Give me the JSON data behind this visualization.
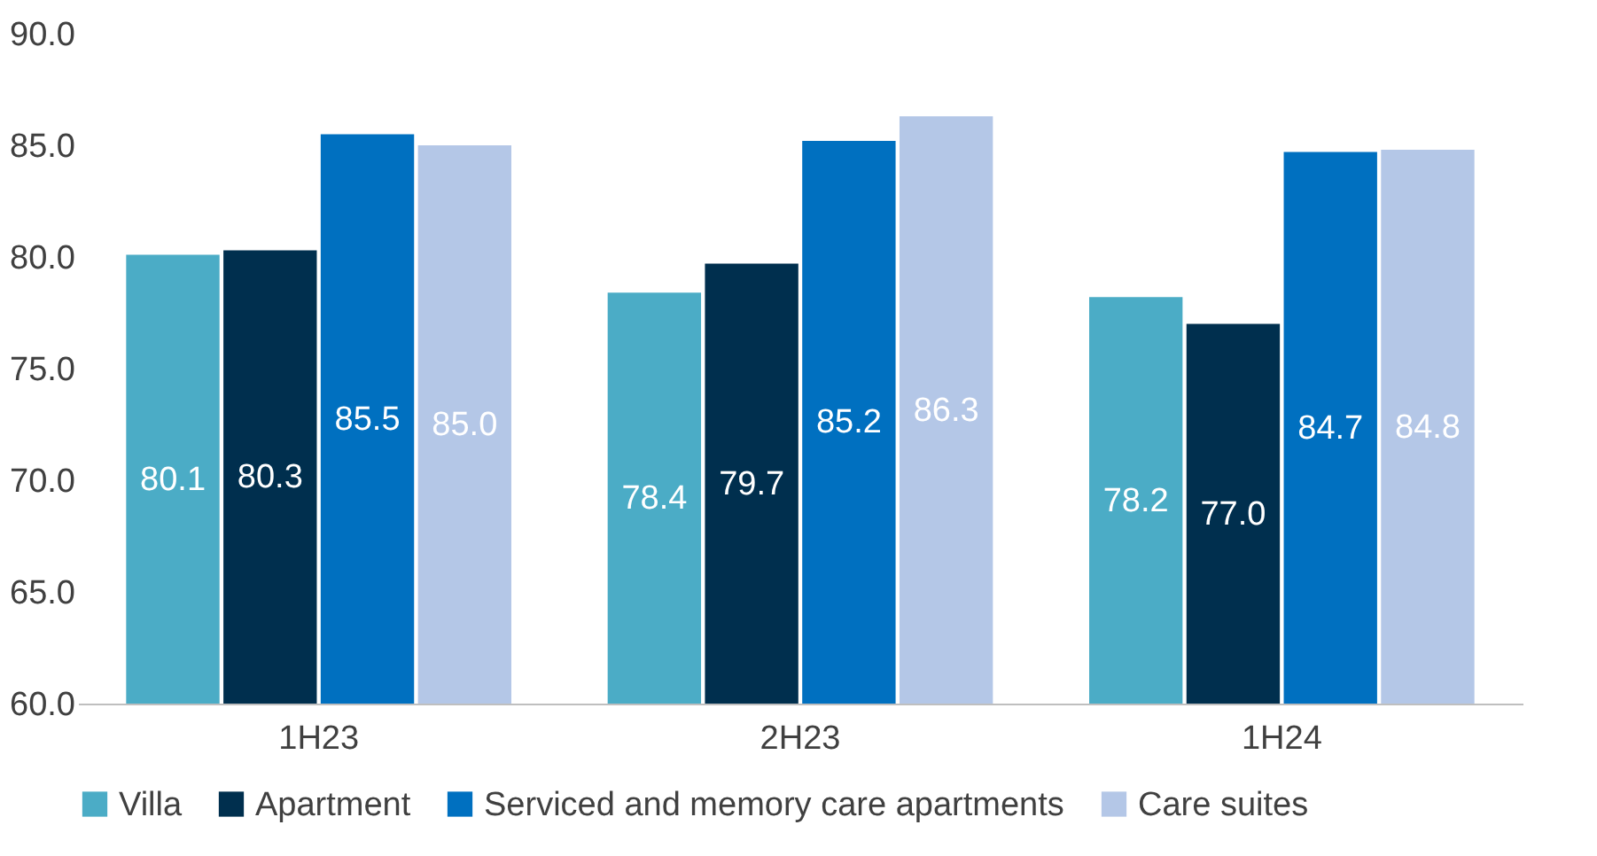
{
  "chart_data": {
    "type": "bar",
    "categories": [
      "1H23",
      "2H23",
      "1H24"
    ],
    "series": [
      {
        "name": "Villa",
        "color": "#4bacc6",
        "values": [
          80.1,
          78.4,
          78.2
        ],
        "value_labels": [
          "80.1",
          "78.4",
          "78.2"
        ]
      },
      {
        "name": "Apartment",
        "color": "#002f4e",
        "values": [
          80.3,
          79.7,
          77.0
        ],
        "value_labels": [
          "80.3",
          "79.7",
          "77.0"
        ]
      },
      {
        "name": "Serviced and memory care apartments",
        "color": "#0070c0",
        "values": [
          85.5,
          85.2,
          84.7
        ],
        "value_labels": [
          "85.5",
          "85.2",
          "84.7"
        ]
      },
      {
        "name": "Care suites",
        "color": "#b4c7e7",
        "values": [
          85.0,
          86.3,
          84.8
        ],
        "value_labels": [
          "85.0",
          "86.3",
          "84.8"
        ]
      }
    ],
    "ylim": [
      60,
      90
    ],
    "yticks": [
      {
        "value": 60,
        "label": "60.0"
      },
      {
        "value": 65,
        "label": "65.0"
      },
      {
        "value": 70,
        "label": "70.0"
      },
      {
        "value": 75,
        "label": "75.0"
      },
      {
        "value": 80,
        "label": "80.0"
      },
      {
        "value": 85,
        "label": "85.0"
      },
      {
        "value": 90,
        "label": "90.0"
      }
    ],
    "grid": false,
    "legend": "bottom"
  }
}
